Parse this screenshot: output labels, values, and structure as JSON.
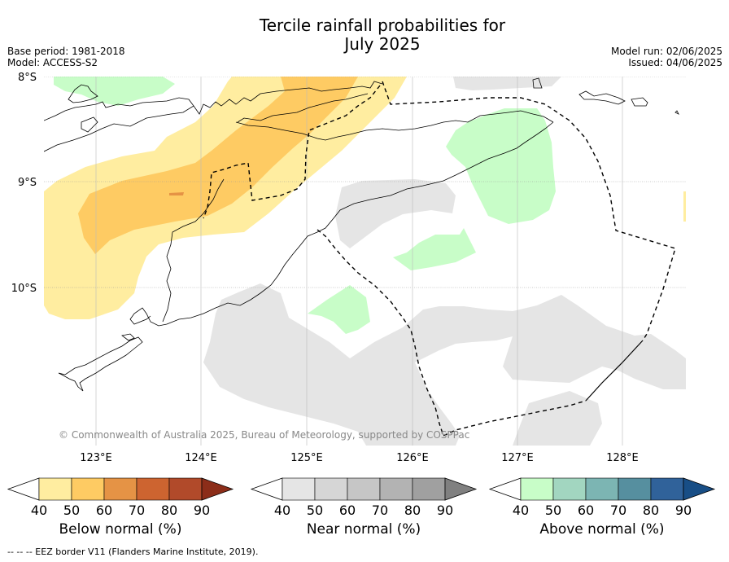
{
  "title_line1": "Tercile rainfall probabilities for",
  "title_line2": "July 2025",
  "base_period": "Base period: 1981-2018",
  "model": "Model: ACCESS-S2",
  "model_run": "Model run: 02/06/2025",
  "issued": "Issued: 04/06/2025",
  "copyright": "© Commonwealth of Australia 2025, Bureau of Meteorology, supported by COSPPac",
  "lat_labels": [
    "8°S",
    "9°S",
    "10°S"
  ],
  "lon_labels": [
    "123°E",
    "124°E",
    "125°E",
    "126°E",
    "127°E",
    "128°E"
  ],
  "colorbars": [
    {
      "label": "Below normal (%)",
      "ticks": [
        "40",
        "50",
        "60",
        "70",
        "80",
        "90"
      ],
      "colors": [
        "#ffeda0",
        "#fecb63",
        "#e59345",
        "#cd6430",
        "#b14a2a",
        "#8c2d19"
      ]
    },
    {
      "label": "Near normal (%)",
      "ticks": [
        "40",
        "50",
        "60",
        "70",
        "80",
        "90"
      ],
      "colors": [
        "#e5e5e5",
        "#d6d6d6",
        "#c6c6c6",
        "#b3b3b3",
        "#a0a0a0",
        "#808080"
      ]
    },
    {
      "label": "Above normal (%)",
      "ticks": [
        "40",
        "50",
        "60",
        "70",
        "80",
        "90"
      ],
      "colors": [
        "#c8fdc8",
        "#a2d6c0",
        "#7cb5b3",
        "#568f9f",
        "#30629a",
        "#184e86"
      ]
    }
  ],
  "footnote": "--  --  -- EEZ border V11 (Flanders Marine Institute, 2019)."
}
